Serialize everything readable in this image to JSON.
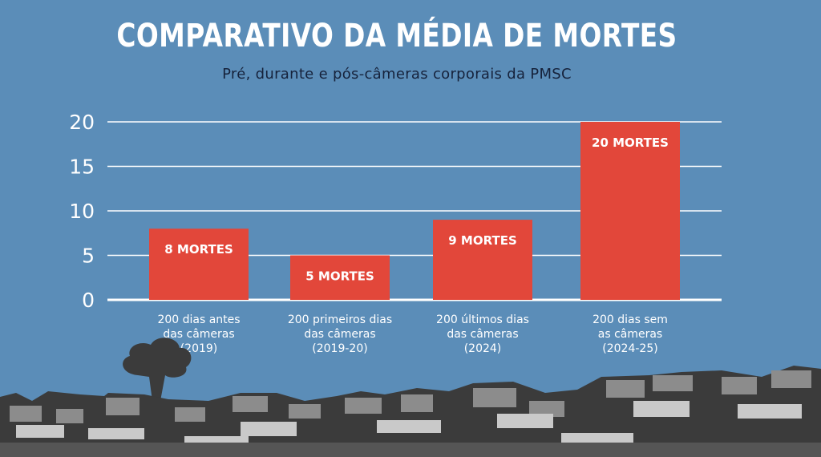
{
  "title": "COMPARATIVO DA MÉDIA DE MORTES",
  "subtitle": "Pré, durante e pós-câmeras corporais da PMSC",
  "colors": {
    "background": "#5b8db8",
    "bar": "#e2473a",
    "text": "#ffffff",
    "subtitle": "#16223b"
  },
  "chart_data": {
    "type": "bar",
    "title": "COMPARATIVO DA MÉDIA DE MORTES",
    "subtitle": "Pré, durante e pós-câmeras corporais da PMSC",
    "categories": [
      [
        "200 dias antes",
        "das câmeras",
        "(2019)"
      ],
      [
        "200 primeiros dias",
        "das câmeras",
        "(2019-20)"
      ],
      [
        "200 últimos dias",
        "das câmeras",
        "(2024)"
      ],
      [
        "200 dias sem",
        "as câmeras",
        "(2024-25)"
      ]
    ],
    "values": [
      8,
      5,
      9,
      20
    ],
    "data_labels": [
      "8 MORTES",
      "5 MORTES",
      "9 MORTES",
      "20 MORTES"
    ],
    "yticks": [
      "0",
      "5",
      "10",
      "15",
      "20"
    ],
    "ylim": [
      0,
      20
    ],
    "grid": true,
    "xlabel": "",
    "ylabel": ""
  }
}
